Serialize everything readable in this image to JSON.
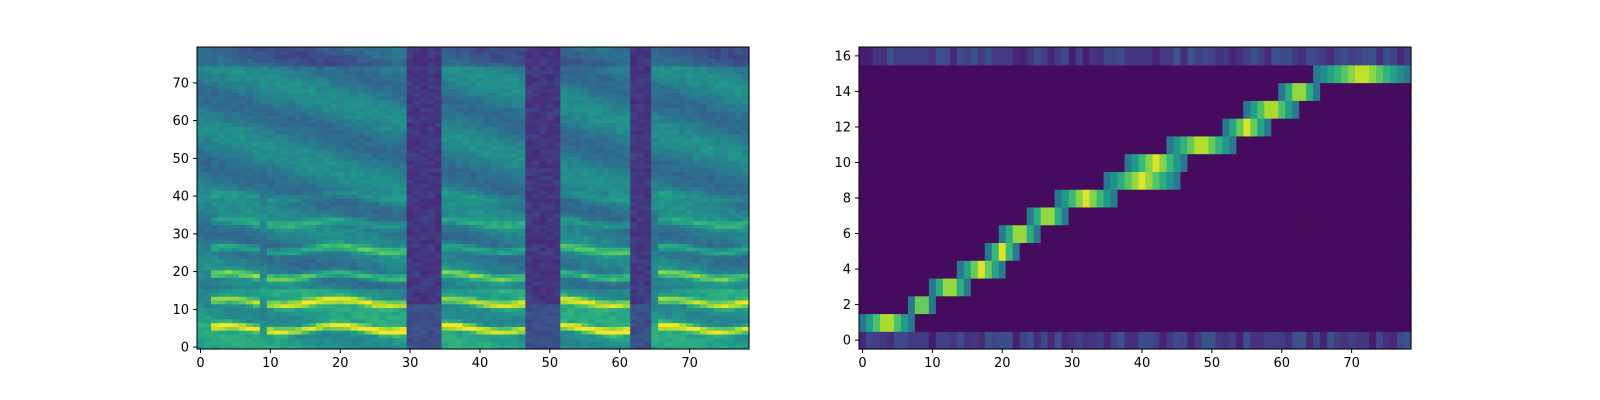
{
  "chart_data": [
    {
      "type": "heatmap",
      "title": "",
      "xlabel": "",
      "ylabel": "",
      "colormap": "viridis",
      "xlim": [
        -0.5,
        78.5
      ],
      "ylim": [
        -0.5,
        79.5
      ],
      "xticks": [
        0,
        10,
        20,
        30,
        40,
        50,
        60,
        70
      ],
      "yticks": [
        0,
        10,
        20,
        30,
        40,
        50,
        60,
        70
      ],
      "n_frames": 79,
      "n_bins": 80,
      "silent_frames": [
        30,
        31,
        32,
        33,
        34,
        47,
        48,
        49,
        50,
        51,
        62,
        63,
        64
      ],
      "harmonic_bands_y": [
        5,
        12,
        19,
        26,
        33,
        40
      ],
      "grid": false,
      "legend": "none"
    },
    {
      "type": "heatmap",
      "title": "",
      "xlabel": "",
      "ylabel": "",
      "colormap": "viridis",
      "xlim": [
        -0.5,
        78.5
      ],
      "ylim": [
        -0.5,
        16.5
      ],
      "xticks": [
        0,
        10,
        20,
        30,
        40,
        50,
        60,
        70
      ],
      "yticks": [
        0,
        2,
        4,
        6,
        8,
        10,
        12,
        14,
        16
      ],
      "alignment_path": [
        {
          "token": 1,
          "x_start": 0,
          "x_end": 7
        },
        {
          "token": 2,
          "x_start": 7,
          "x_end": 10
        },
        {
          "token": 3,
          "x_start": 10,
          "x_end": 15
        },
        {
          "token": 4,
          "x_start": 14,
          "x_end": 20
        },
        {
          "token": 5,
          "x_start": 18,
          "x_end": 22
        },
        {
          "token": 6,
          "x_start": 20,
          "x_end": 25
        },
        {
          "token": 7,
          "x_start": 24,
          "x_end": 29
        },
        {
          "token": 8,
          "x_start": 28,
          "x_end": 36
        },
        {
          "token": 9,
          "x_start": 35,
          "x_end": 45
        },
        {
          "token": 10,
          "x_start": 38,
          "x_end": 46
        },
        {
          "token": 11,
          "x_start": 44,
          "x_end": 53
        },
        {
          "token": 12,
          "x_start": 52,
          "x_end": 58
        },
        {
          "token": 13,
          "x_start": 55,
          "x_end": 62
        },
        {
          "token": 14,
          "x_start": 60,
          "x_end": 65
        },
        {
          "token": 15,
          "x_start": 65,
          "x_end": 78
        }
      ],
      "grid": false,
      "legend": "none"
    }
  ]
}
